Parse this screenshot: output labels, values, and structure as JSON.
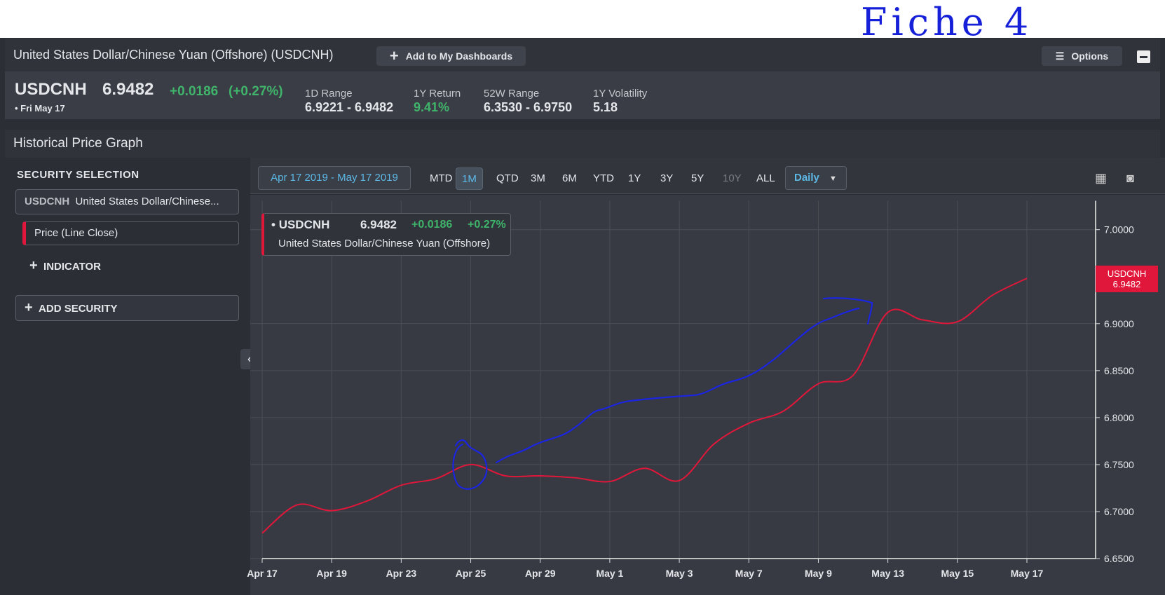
{
  "header": {
    "title": "United States Dollar/Chinese Yuan (Offshore) (USDCNH)",
    "add_button": "Add to My Dashboards",
    "options_button": "Options"
  },
  "annotation": "Fiche 4",
  "quote": {
    "symbol": "USDCNH",
    "price": "6.9482",
    "change": "+0.0186",
    "change_pct": "(+0.27%)",
    "date": "Fri May 17",
    "stats": [
      {
        "label": "1D Range",
        "value": "6.9221 - 6.9482"
      },
      {
        "label": "1Y Return",
        "value": "9.41%"
      },
      {
        "label": "52W Range",
        "value": "6.3530 - 6.9750"
      },
      {
        "label": "1Y Volatility",
        "value": "5.18"
      }
    ]
  },
  "panel": {
    "title": "Historical Price Graph",
    "sidebar": {
      "heading": "SECURITY SELECTION",
      "security_symbol": "USDCNH",
      "security_name": "United States Dollar/Chinese...",
      "study": "Price (Line Close)",
      "add_indicator": "INDICATOR",
      "add_security": "ADD SECURITY"
    },
    "toolbar": {
      "date_range": "Apr 17 2019 - May 17 2019",
      "periods": [
        "MTD",
        "1M",
        "QTD",
        "3M",
        "6M",
        "YTD",
        "1Y",
        "3Y",
        "5Y",
        "10Y",
        "ALL"
      ],
      "active_period": "1M",
      "disabled_periods": [
        "10Y"
      ],
      "interval": "Daily"
    },
    "legend": {
      "change": "+0.0186",
      "change_pct": "+0.27%",
      "name": "United States Dollar/Chinese Yuan (Offshore)"
    }
  },
  "chart_data": {
    "type": "line",
    "categories": [
      "Apr 17",
      null,
      "Apr 19",
      null,
      "Apr 23",
      null,
      "Apr 25",
      null,
      "Apr 29",
      null,
      "May 1",
      null,
      "May 3",
      null,
      "May 7",
      null,
      "May 9",
      null,
      "May 13",
      null,
      "May 15",
      null,
      "May 17"
    ],
    "series": [
      {
        "name": "USDCNH",
        "color": "#e0173a",
        "values": [
          6.677,
          6.707,
          6.701,
          6.711,
          6.728,
          6.735,
          6.75,
          6.738,
          6.738,
          6.736,
          6.732,
          6.746,
          6.733,
          6.772,
          6.794,
          6.807,
          6.836,
          6.845,
          6.912,
          6.904,
          6.902,
          6.93,
          6.9482
        ]
      }
    ],
    "ylim": [
      6.65,
      7.027
    ],
    "yticks": [
      {
        "value": 6.65,
        "label": "6.6500"
      },
      {
        "value": 6.7,
        "label": "6.7000"
      },
      {
        "value": 6.75,
        "label": "6.7500"
      },
      {
        "value": 6.8,
        "label": "6.8000"
      },
      {
        "value": 6.85,
        "label": "6.8500"
      },
      {
        "value": 6.9,
        "label": "6.9000"
      },
      {
        "value": 7,
        "label": "7.0000"
      }
    ],
    "grid": true
  }
}
